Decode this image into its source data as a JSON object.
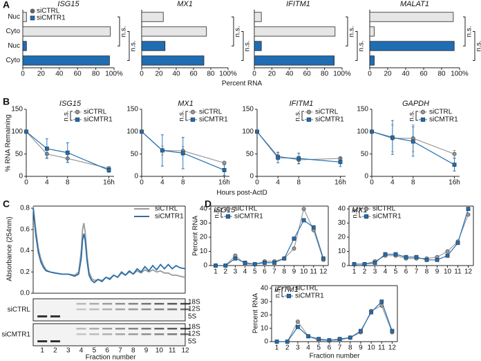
{
  "chart_data": [
    {
      "type": "bar",
      "panel": "A",
      "title": "ISG15",
      "categories": [
        "Nuc",
        "Cyto"
      ],
      "legend": "upper-left",
      "series": [
        {
          "name": "siCTRL",
          "color": "#e6e6e6",
          "values": [
            4,
            96
          ]
        },
        {
          "name": "siCMTR1",
          "color": "#1f6db3",
          "values": [
            4,
            95
          ]
        }
      ],
      "xlim": [
        0,
        100
      ],
      "xticks": [
        0,
        20,
        40,
        60,
        80,
        {
          "value": 100,
          "label": "100%"
        }
      ],
      "xlabel": "Percent RNA",
      "annotations": [
        "n.s.",
        "n.s."
      ]
    },
    {
      "type": "bar",
      "title": "MX1",
      "series": [
        {
          "color": "#e6e6e6",
          "values": [
            25,
            75
          ]
        },
        {
          "color": "#1f6db3",
          "values": [
            27,
            72
          ]
        }
      ],
      "xlim": [
        0,
        100
      ],
      "xticks": [
        0,
        20,
        40,
        60,
        80,
        {
          "value": 100,
          "label": "100%"
        }
      ],
      "annotations": [
        "n.s.",
        "n.s."
      ]
    },
    {
      "type": "bar",
      "title": "IFITM1",
      "series": [
        {
          "color": "#e6e6e6",
          "values": [
            8,
            92
          ]
        },
        {
          "color": "#1f6db3",
          "values": [
            8,
            91
          ]
        }
      ],
      "xlim": [
        0,
        100
      ],
      "xticks": [
        0,
        20,
        40,
        60,
        80,
        {
          "value": 100,
          "label": "100%"
        }
      ],
      "annotations": [
        "n.s.",
        "n.s."
      ]
    },
    {
      "type": "bar",
      "title": "MALAT1",
      "series": [
        {
          "color": "#e6e6e6",
          "values": [
            93,
            5
          ]
        },
        {
          "color": "#1f6db3",
          "values": [
            94,
            5
          ]
        }
      ],
      "xlim": [
        0,
        100
      ],
      "xticks": [
        0,
        20,
        40,
        60,
        80,
        {
          "value": 100,
          "label": "100%"
        }
      ],
      "annotations": [
        "n.s.",
        "n.s."
      ]
    },
    {
      "type": "line",
      "panel": "B",
      "title": "ISG15",
      "ylabel": "% RNA Remaining",
      "xlabel": "Hours post-ActD",
      "markers": true,
      "legend": "upper-right",
      "x": [
        0,
        4,
        8,
        16
      ],
      "xlim": [
        0,
        17
      ],
      "xticks": [
        0,
        4,
        8,
        {
          "value": 16,
          "label": "16h"
        }
      ],
      "ylim": [
        0,
        150
      ],
      "yticks": [
        0,
        50,
        100,
        150
      ],
      "series": [
        {
          "name": "siCTRL",
          "color": "#9a9a9a",
          "values": [
            100,
            50,
            40,
            18
          ],
          "errors": [
            0,
            8,
            8,
            4
          ]
        },
        {
          "name": "siCMTR1",
          "color": "#1f6db3",
          "values": [
            100,
            62,
            53,
            14
          ],
          "errors": [
            0,
            22,
            22,
            5
          ]
        }
      ],
      "annotations": [
        "n.s."
      ]
    },
    {
      "type": "line",
      "title": "MX1",
      "markers": true,
      "legend": "upper-right",
      "x": [
        0,
        4,
        8,
        16
      ],
      "xlim": [
        0,
        17
      ],
      "xticks": [
        0,
        4,
        8,
        {
          "value": 16,
          "label": "16h"
        }
      ],
      "ylim": [
        0,
        150
      ],
      "yticks": [
        0,
        50,
        100,
        150
      ],
      "series": [
        {
          "name": "siCTRL",
          "color": "#9a9a9a",
          "values": [
            100,
            58,
            57,
            30
          ],
          "errors": [
            0,
            10,
            10,
            4
          ]
        },
        {
          "name": "siCMTR1",
          "color": "#1f6db3",
          "values": [
            100,
            58,
            52,
            14
          ],
          "errors": [
            0,
            35,
            35,
            12
          ]
        }
      ],
      "annotations": [
        "n.s."
      ]
    },
    {
      "type": "line",
      "title": "IFITM1",
      "markers": true,
      "legend": "upper-right",
      "x": [
        0,
        4,
        8,
        16
      ],
      "xlim": [
        0,
        17
      ],
      "xticks": [
        0,
        4,
        8,
        {
          "value": 16,
          "label": "16h"
        }
      ],
      "ylim": [
        0,
        150
      ],
      "yticks": [
        0,
        50,
        100,
        150
      ],
      "series": [
        {
          "name": "siCTRL",
          "color": "#9a9a9a",
          "values": [
            100,
            45,
            37,
            40
          ],
          "errors": [
            0,
            8,
            8,
            4
          ]
        },
        {
          "name": "siCMTR1",
          "color": "#1f6db3",
          "values": [
            100,
            42,
            40,
            32
          ],
          "errors": [
            0,
            12,
            12,
            10
          ]
        }
      ],
      "annotations": [
        "n.s."
      ]
    },
    {
      "type": "line",
      "title": "GAPDH",
      "markers": true,
      "legend": "upper-right",
      "x": [
        0,
        4,
        8,
        16
      ],
      "xlim": [
        0,
        17
      ],
      "xticks": [
        0,
        4,
        8,
        {
          "value": 16,
          "label": "16h"
        }
      ],
      "ylim": [
        0,
        150
      ],
      "yticks": [
        0,
        50,
        100,
        150
      ],
      "series": [
        {
          "name": "siCTRL",
          "color": "#9a9a9a",
          "values": [
            100,
            85,
            85,
            50
          ],
          "errors": [
            0,
            30,
            30,
            8
          ]
        },
        {
          "name": "siCMTR1",
          "color": "#1f6db3",
          "values": [
            100,
            87,
            78,
            26
          ],
          "errors": [
            0,
            38,
            33,
            14
          ]
        }
      ],
      "annotations": [
        "n.s."
      ]
    },
    {
      "type": "line",
      "panel": "C",
      "ylabel": "Absorbance (254nm)",
      "xlabel": "Fraction number",
      "legend": "upper-right",
      "x": [
        0.3,
        0.5,
        0.7,
        0.9,
        1.1,
        1.3,
        1.6,
        2,
        2.5,
        3,
        3.5,
        3.8,
        4,
        4.1,
        4.2,
        4.3,
        4.45,
        4.6,
        4.8,
        5,
        5.3,
        5.6,
        5.9,
        6.2,
        6.5,
        6.8,
        7.1,
        7.4,
        7.7,
        8,
        8.3,
        8.6,
        8.9,
        9.2,
        9.5,
        9.8,
        10.1,
        10.4,
        10.7,
        11,
        11.3,
        11.6,
        12
      ],
      "xlim": [
        0.3,
        12
      ],
      "ylim": [
        0,
        0.82
      ],
      "yticks": [
        {
          "value": 0,
          "label": "0.0"
        },
        {
          "value": 0.2,
          "label": "0.2"
        },
        {
          "value": 0.4,
          "label": "0.4"
        },
        {
          "value": 0.6,
          "label": "0.6"
        },
        {
          "value": 0.8,
          "label": "0.8"
        }
      ],
      "series": [
        {
          "name": "siCTRL",
          "color": "#9a9a9a",
          "values": [
            0.82,
            0.6,
            0.42,
            0.32,
            0.26,
            0.22,
            0.2,
            0.19,
            0.18,
            0.18,
            0.17,
            0.2,
            0.4,
            0.6,
            0.66,
            0.58,
            0.35,
            0.2,
            0.14,
            0.12,
            0.13,
            0.12,
            0.15,
            0.14,
            0.17,
            0.15,
            0.19,
            0.17,
            0.2,
            0.18,
            0.21,
            0.19,
            0.22,
            0.2,
            0.22,
            0.2,
            0.21,
            0.19,
            0.19,
            0.17,
            0.17,
            0.16,
            0.15
          ]
        },
        {
          "name": "siCMTR1",
          "color": "#2a6fa8",
          "values": [
            0.8,
            0.55,
            0.38,
            0.29,
            0.24,
            0.21,
            0.2,
            0.19,
            0.18,
            0.18,
            0.16,
            0.18,
            0.33,
            0.5,
            0.56,
            0.5,
            0.3,
            0.17,
            0.12,
            0.1,
            0.13,
            0.11,
            0.15,
            0.13,
            0.17,
            0.15,
            0.2,
            0.17,
            0.21,
            0.18,
            0.23,
            0.2,
            0.25,
            0.21,
            0.26,
            0.22,
            0.27,
            0.23,
            0.27,
            0.23,
            0.26,
            0.24,
            0.23
          ]
        }
      ],
      "categories": [
        "1",
        "2",
        "3",
        "4",
        "5",
        "6",
        "7",
        "8",
        "9",
        "10",
        "11",
        "12"
      ],
      "gel_rows": [
        "siCTRL",
        "siCMTR1"
      ],
      "band_labels": [
        "18S",
        "12S",
        "5S"
      ]
    },
    {
      "type": "line",
      "panel": "D",
      "title": "ISG15",
      "ylabel": "Percent RNA",
      "markers": true,
      "legend": "upper-left",
      "categories": [
        "1",
        "2",
        "3",
        "4",
        "5",
        "6",
        "7",
        "8",
        "9",
        "10",
        "11",
        "12"
      ],
      "ylim": [
        0,
        42
      ],
      "yticks": [
        0,
        10,
        20,
        30,
        40
      ],
      "series": [
        {
          "name": "siCTRL",
          "color": "#9a9a9a",
          "values": [
            0,
            0,
            7,
            1,
            1,
            3,
            3,
            5,
            12,
            40,
            25,
            4
          ]
        },
        {
          "name": "siCMTR1",
          "color": "#1f6db3",
          "values": [
            0,
            0,
            5,
            2,
            1,
            2,
            2,
            5,
            19,
            32,
            27,
            5
          ]
        }
      ],
      "annotations": [
        "n.s."
      ]
    },
    {
      "type": "line",
      "title": "MX1",
      "markers": true,
      "legend": "upper-left",
      "categories": [
        "1",
        "2",
        "3",
        "4",
        "5",
        "6",
        "7",
        "8",
        "9",
        "10",
        "11",
        "12"
      ],
      "ylim": [
        0,
        42
      ],
      "yticks": [
        0,
        10,
        20,
        30,
        40
      ],
      "series": [
        {
          "name": "siCTRL",
          "color": "#9a9a9a",
          "values": [
            1,
            1,
            3,
            7,
            7,
            5,
            5,
            5,
            6,
            10,
            17,
            36
          ]
        },
        {
          "name": "siCMTR1",
          "color": "#1f6db3",
          "values": [
            1,
            1,
            2,
            8,
            8,
            6,
            6,
            4,
            4,
            7,
            16,
            40
          ]
        }
      ],
      "annotations": [
        "n.s."
      ]
    },
    {
      "type": "line",
      "title": "IFITM1",
      "ylabel": "Percent RNA",
      "xlabel": "Fraction number",
      "markers": true,
      "legend": "upper-left",
      "categories": [
        "1",
        "2",
        "3",
        "4",
        "5",
        "6",
        "7",
        "8",
        "9",
        "10",
        "11",
        "12"
      ],
      "ylim": [
        0,
        42
      ],
      "yticks": [
        0,
        10,
        20,
        30,
        40
      ],
      "series": [
        {
          "name": "siCTRL",
          "color": "#9a9a9a",
          "values": [
            0,
            0,
            15,
            4,
            1,
            1,
            1,
            3,
            7,
            23,
            27,
            7
          ]
        },
        {
          "name": "siCMTR1",
          "color": "#1f6db3",
          "values": [
            0,
            0,
            11,
            4,
            2,
            1,
            2,
            3,
            8,
            22,
            30,
            8
          ]
        }
      ],
      "annotations": [
        "n.s."
      ]
    }
  ]
}
